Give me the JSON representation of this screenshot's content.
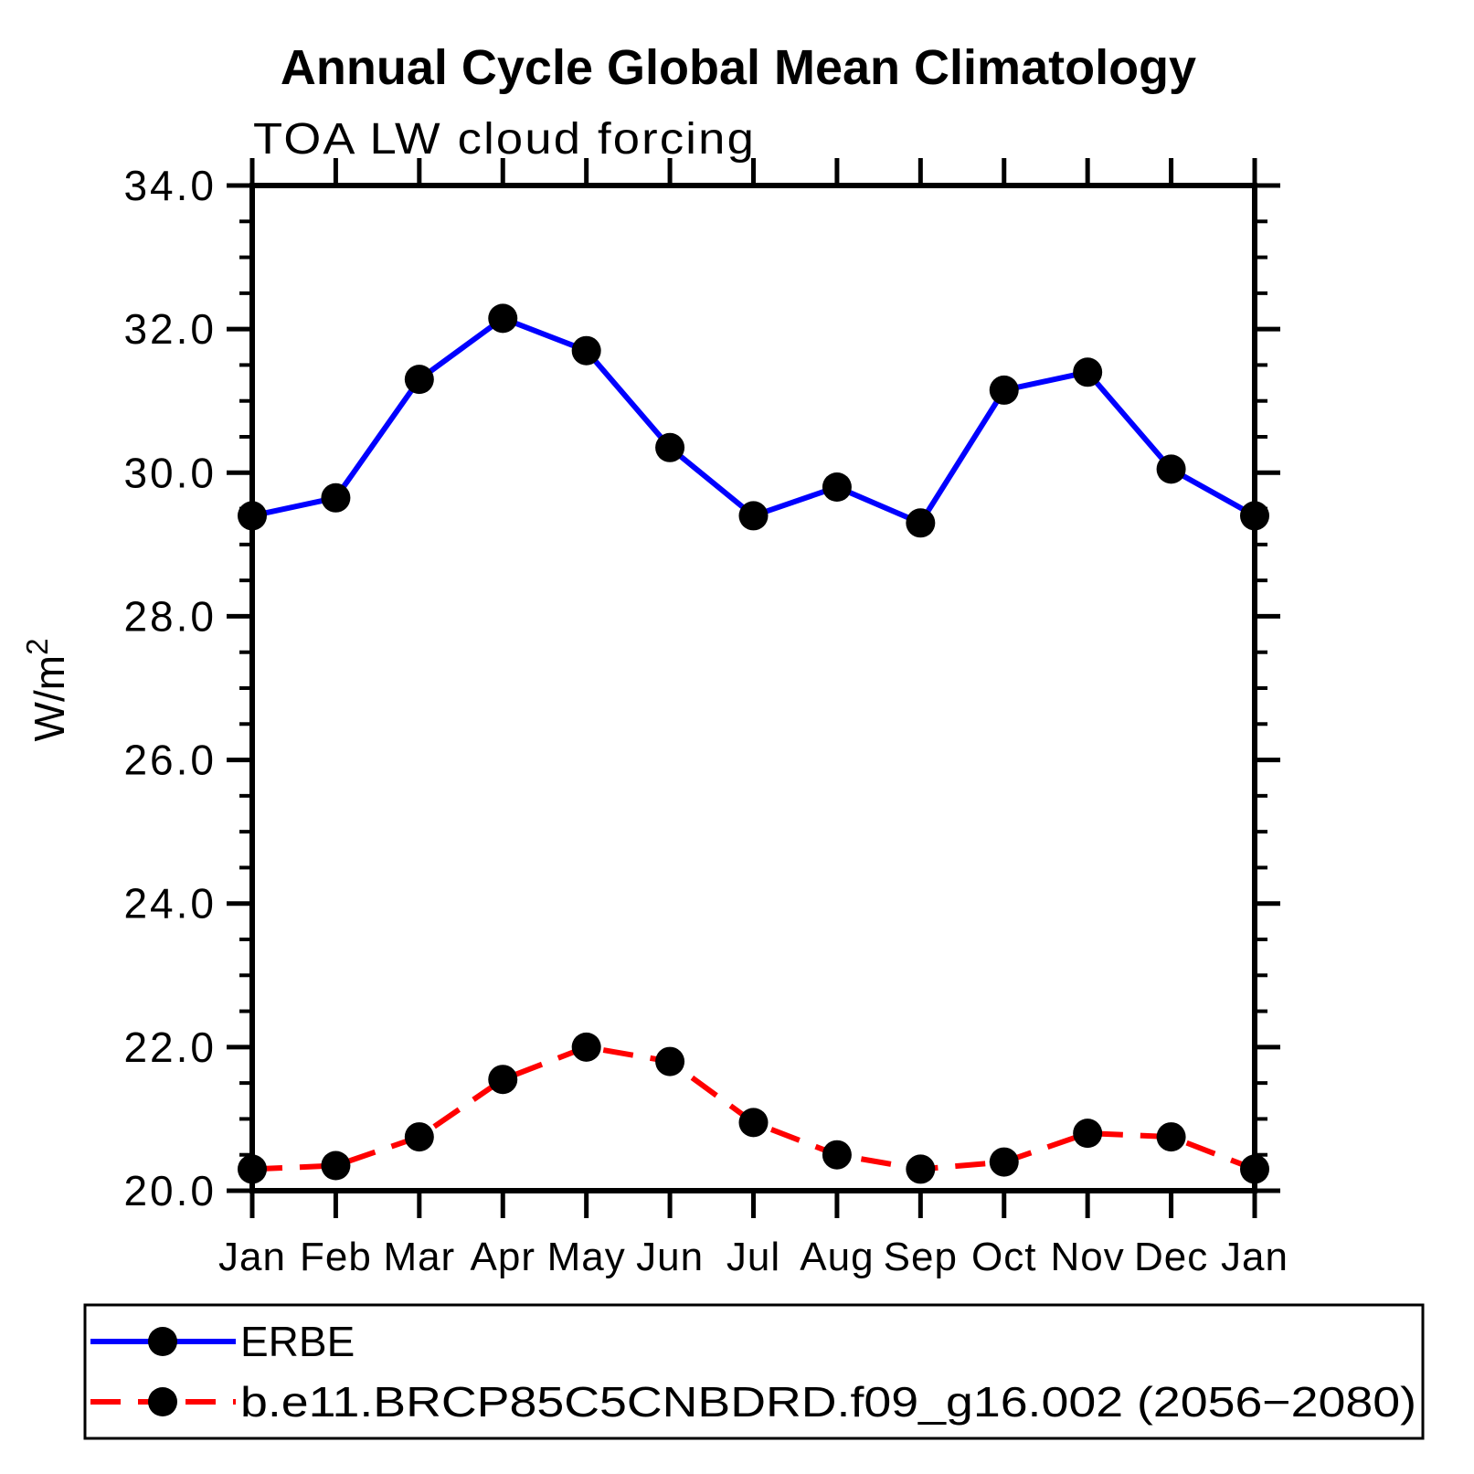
{
  "title": "Annual Cycle Global Mean Climatology",
  "subtitle": "TOA LW cloud forcing",
  "ylabel_base": "W/m",
  "ylabel_sup": "2",
  "colors": {
    "erbe_line": "#0000ff",
    "model_line": "#ff0000",
    "marker": "#000000",
    "axis": "#000000",
    "background": "#ffffff"
  },
  "legend": {
    "items": [
      {
        "label": "ERBE"
      },
      {
        "label": "b.e11.BRCP85C5CNBDRD.f09_g16.002 (2056−2080)"
      }
    ]
  },
  "chart_data": {
    "type": "line",
    "title": "Annual Cycle Global Mean Climatology",
    "subtitle": "TOA LW cloud forcing",
    "xlabel": "",
    "ylabel": "W/m²",
    "categories": [
      "Jan",
      "Feb",
      "Mar",
      "Apr",
      "May",
      "Jun",
      "Jul",
      "Aug",
      "Sep",
      "Oct",
      "Nov",
      "Dec",
      "Jan"
    ],
    "series": [
      {
        "name": "ERBE",
        "color": "#0000ff",
        "line_style": "solid",
        "marker": "filled-circle",
        "marker_color": "#000000",
        "values": [
          29.4,
          29.65,
          31.3,
          32.15,
          31.7,
          30.35,
          29.4,
          29.8,
          29.3,
          31.15,
          31.4,
          30.05,
          29.4
        ]
      },
      {
        "name": "b.e11.BRCP85C5CNBDRD.f09_g16.002 (2056−2080)",
        "color": "#ff0000",
        "line_style": "dashed",
        "marker": "filled-circle",
        "marker_color": "#000000",
        "values": [
          20.3,
          20.35,
          20.75,
          21.55,
          22.0,
          21.8,
          20.95,
          20.5,
          20.3,
          20.4,
          20.8,
          20.75,
          20.3
        ]
      }
    ],
    "ylim": [
      20.0,
      34.0
    ],
    "ytick_major": [
      20.0,
      22.0,
      24.0,
      26.0,
      28.0,
      30.0,
      32.0,
      34.0
    ],
    "ytick_minor_step": 0.5,
    "ytick_label_format": "one_decimal",
    "grid": false,
    "legend_position": "bottom-left-box"
  }
}
